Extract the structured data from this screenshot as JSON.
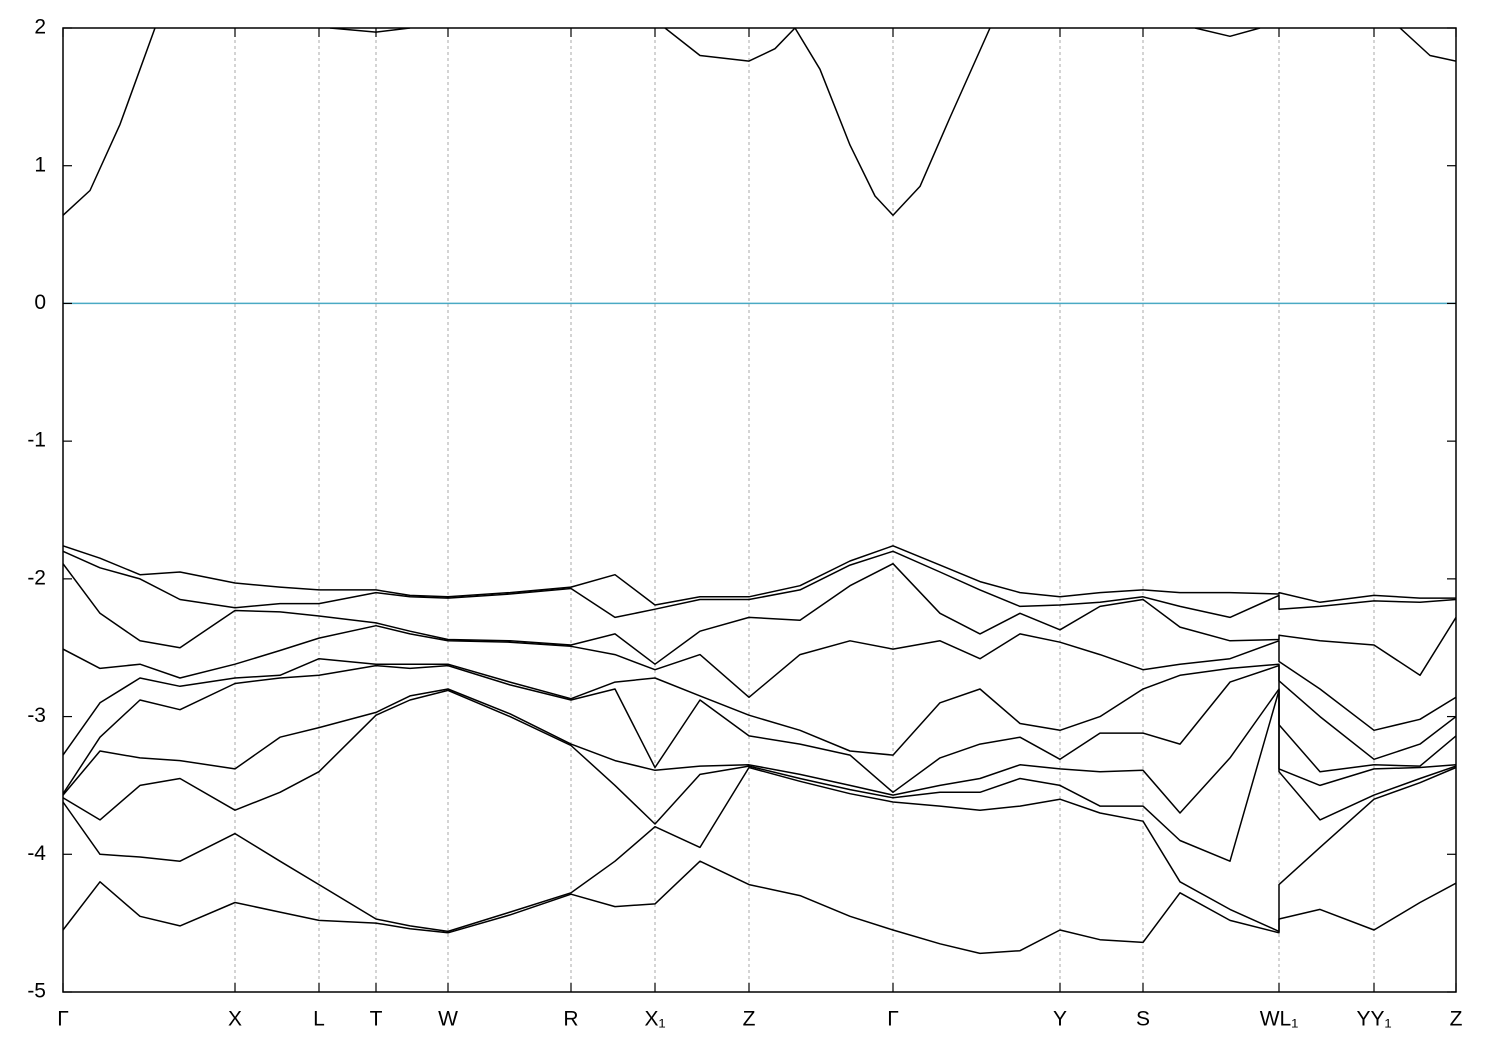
{
  "chart_data": {
    "type": "line",
    "x": [
      0,
      0.37,
      0.77,
      1.17,
      1.72,
      2.17,
      2.56,
      3.13,
      3.47,
      3.85,
      4.47,
      5.08,
      5.52,
      5.92,
      6.37,
      6.86,
      7.37,
      7.87,
      8.3,
      8.77,
      9.17,
      9.57,
      9.97,
      10.37,
      10.8,
      11.17,
      11.67,
      12.16,
      12.16,
      12.57,
      13.11,
      13.57,
      13.93
    ],
    "color": "#000000",
    "series": [
      {
        "values": [
          -1.76,
          -1.85,
          -1.97,
          -1.95,
          -2.03,
          -2.06,
          -2.08,
          -2.08,
          -2.12,
          -2.13,
          -2.1,
          -2.06,
          -1.97,
          -2.19,
          -2.13,
          -2.13,
          -2.05,
          -1.87,
          -1.76,
          -1.9,
          -2.02,
          -2.1,
          -2.13,
          -2.1,
          -2.08,
          -2.1,
          -2.1,
          -2.11,
          -2.1,
          -2.17,
          -2.12,
          -2.14,
          -2.14
        ]
      },
      {
        "values": [
          -1.8,
          -1.92,
          -2.0,
          -2.15,
          -2.21,
          -2.18,
          -2.18,
          -2.1,
          -2.13,
          -2.14,
          -2.11,
          -2.07,
          -2.28,
          -2.22,
          -2.15,
          -2.15,
          -2.08,
          -1.9,
          -1.8,
          -1.95,
          -2.08,
          -2.2,
          -2.19,
          -2.17,
          -2.13,
          -2.2,
          -2.28,
          -2.12,
          -2.22,
          -2.2,
          -2.16,
          -2.17,
          -2.15
        ]
      },
      {
        "values": [
          -1.89,
          -2.25,
          -2.45,
          -2.5,
          -2.23,
          -2.24,
          -2.27,
          -2.32,
          -2.38,
          -2.44,
          -2.45,
          -2.48,
          -2.4,
          -2.62,
          -2.38,
          -2.28,
          -2.3,
          -2.05,
          -1.89,
          -2.25,
          -2.4,
          -2.25,
          -2.37,
          -2.2,
          -2.15,
          -2.35,
          -2.45,
          -2.44,
          -2.41,
          -2.45,
          -2.48,
          -2.7,
          -2.28
        ]
      },
      {
        "values": [
          -2.51,
          -2.65,
          -2.62,
          -2.72,
          -2.62,
          -2.52,
          -2.43,
          -2.34,
          -2.4,
          -2.45,
          -2.46,
          -2.49,
          -2.55,
          -2.66,
          -2.55,
          -2.86,
          -2.55,
          -2.45,
          -2.51,
          -2.45,
          -2.58,
          -2.4,
          -2.46,
          -2.55,
          -2.66,
          -2.62,
          -2.58,
          -2.45,
          -2.6,
          -2.8,
          -3.1,
          -3.02,
          -2.86
        ]
      },
      {
        "values": [
          -3.28,
          -2.9,
          -2.72,
          -2.78,
          -2.72,
          -2.7,
          -2.58,
          -2.62,
          -2.62,
          -2.62,
          -2.75,
          -2.87,
          -2.75,
          -2.72,
          -2.85,
          -2.99,
          -3.1,
          -3.25,
          -3.28,
          -2.9,
          -2.8,
          -3.05,
          -3.1,
          -3.0,
          -2.8,
          -2.7,
          -2.65,
          -2.62,
          -2.74,
          -3.0,
          -3.31,
          -3.2,
          -3.0
        ]
      },
      {
        "values": [
          -3.56,
          -3.15,
          -2.88,
          -2.95,
          -2.76,
          -2.72,
          -2.7,
          -2.63,
          -2.65,
          -2.63,
          -2.77,
          -2.88,
          -2.8,
          -3.37,
          -2.88,
          -3.14,
          -3.2,
          -3.28,
          -3.55,
          -3.3,
          -3.2,
          -3.15,
          -3.31,
          -3.12,
          -3.12,
          -3.2,
          -2.75,
          -2.63,
          -3.06,
          -3.4,
          -3.35,
          -3.36,
          -3.14
        ]
      },
      {
        "values": [
          -3.57,
          -3.25,
          -3.3,
          -3.32,
          -3.38,
          -3.15,
          -3.08,
          -2.97,
          -2.85,
          -2.8,
          -2.98,
          -3.2,
          -3.32,
          -3.39,
          -3.36,
          -3.35,
          -3.42,
          -3.5,
          -3.57,
          -3.5,
          -3.45,
          -3.35,
          -3.38,
          -3.4,
          -3.39,
          -3.7,
          -3.3,
          -2.8,
          -3.38,
          -3.5,
          -3.38,
          -3.37,
          -3.35
        ]
      },
      {
        "values": [
          -3.59,
          -3.75,
          -3.5,
          -3.45,
          -3.68,
          -3.55,
          -3.4,
          -2.99,
          -2.88,
          -2.81,
          -3.0,
          -3.21,
          -3.5,
          -3.78,
          -3.42,
          -3.36,
          -3.45,
          -3.53,
          -3.59,
          -3.55,
          -3.55,
          -3.45,
          -3.5,
          -3.65,
          -3.65,
          -3.9,
          -4.05,
          -2.81,
          -3.4,
          -3.75,
          -3.57,
          -3.45,
          -3.36
        ]
      },
      {
        "values": [
          -3.62,
          -4.0,
          -4.02,
          -4.05,
          -3.85,
          -4.05,
          -4.22,
          -4.47,
          -4.52,
          -4.56,
          -4.42,
          -4.28,
          -4.05,
          -3.8,
          -3.95,
          -3.37,
          -3.47,
          -3.56,
          -3.62,
          -3.65,
          -3.68,
          -3.65,
          -3.6,
          -3.7,
          -3.76,
          -4.2,
          -4.4,
          -4.56,
          -4.22,
          -3.95,
          -3.6,
          -3.48,
          -3.37
        ]
      },
      {
        "values": [
          -4.55,
          -4.2,
          -4.45,
          -4.52,
          -4.35,
          -4.42,
          -4.48,
          -4.5,
          -4.54,
          -4.57,
          -4.44,
          -4.29,
          -4.38,
          -4.36,
          -4.05,
          -4.22,
          -4.3,
          -4.45,
          -4.55,
          -4.65,
          -4.72,
          -4.7,
          -4.55,
          -4.62,
          -4.64,
          -4.28,
          -4.48,
          -4.57,
          -4.47,
          -4.4,
          -4.55,
          -4.35,
          -4.21
        ]
      },
      {
        "x": [
          0,
          0.27,
          0.57,
          0.92,
          2.4,
          2.67,
          3.13,
          3.47,
          5.0,
          6.02,
          6.37,
          6.86,
          7.12,
          7.32,
          7.57,
          7.87,
          8.12,
          8.3,
          8.57,
          8.87,
          9.27,
          10.5,
          11.32,
          11.67,
          11.97,
          12.8,
          13.37,
          13.67,
          13.93
        ],
        "values": [
          0.64,
          0.82,
          1.3,
          2.0,
          null,
          2.0,
          1.97,
          2.0,
          null,
          2.0,
          1.8,
          1.76,
          1.85,
          2.0,
          1.7,
          1.15,
          0.78,
          0.64,
          0.85,
          1.35,
          2.0,
          null,
          2.0,
          1.94,
          2.0,
          null,
          2.0,
          1.8,
          1.76
        ]
      }
    ],
    "xlim": [
      0,
      13.93
    ],
    "xticks": [
      {
        "value": 0,
        "label": "Γ"
      },
      {
        "value": 1.72,
        "label": "X"
      },
      {
        "value": 2.56,
        "label": "L"
      },
      {
        "value": 3.13,
        "label": "T"
      },
      {
        "value": 3.85,
        "label": "W"
      },
      {
        "value": 5.08,
        "label": "R"
      },
      {
        "value": 5.92,
        "label": "X₁"
      },
      {
        "value": 6.86,
        "label": "Z"
      },
      {
        "value": 8.3,
        "label": "Γ"
      },
      {
        "value": 9.97,
        "label": "Y"
      },
      {
        "value": 10.8,
        "label": "S"
      },
      {
        "value": 12.16,
        "label": "WL₁"
      },
      {
        "value": 13.11,
        "label": "YY₁"
      },
      {
        "value": 13.93,
        "label": "Z"
      }
    ],
    "ylim": [
      -5,
      2
    ],
    "yticks": [
      -5,
      -4,
      -3,
      -2,
      -1,
      0,
      1,
      2
    ],
    "grid": true,
    "hline": {
      "value": 0,
      "color": "#4aaac4"
    }
  }
}
